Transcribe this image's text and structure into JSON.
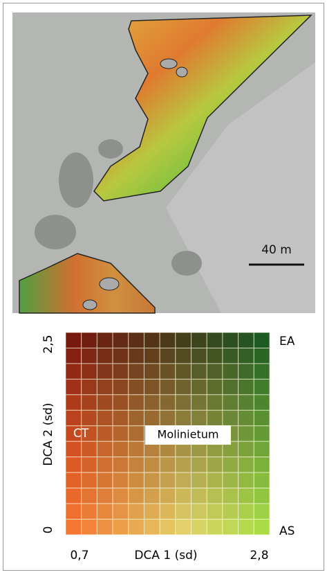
{
  "map": {
    "scale_bar": "40 m"
  },
  "legend": {
    "y_axis_label": "DCA 2 (sd)",
    "y_max": "2,5",
    "y_min": "0",
    "x_axis_label": "DCA 1 (sd)",
    "x_min": "0,7",
    "x_max": "2,8",
    "top_right": "EA",
    "bottom_right": "AS",
    "labels": [
      "CT",
      "Molinietum"
    ]
  }
}
